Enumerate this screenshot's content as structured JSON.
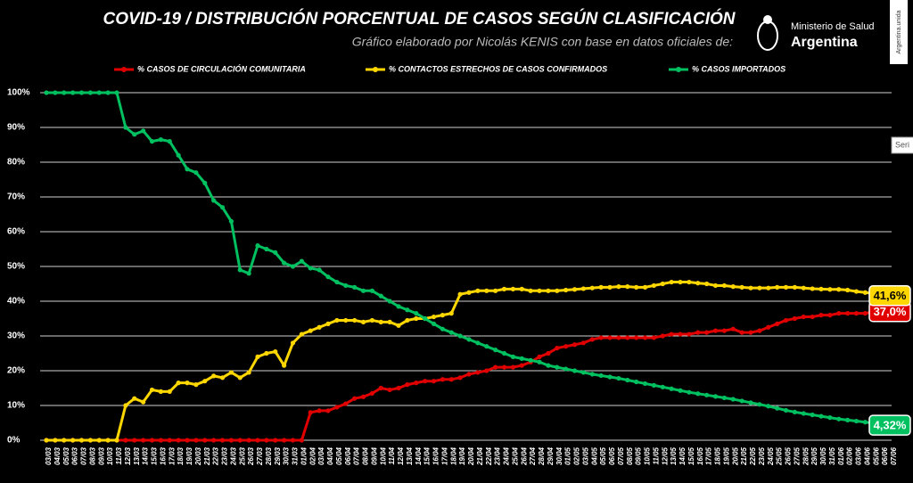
{
  "header": {
    "org_line1": "Ministerio de Salud",
    "org_line2": "Argentina",
    "side_tag": "Argentina.unida",
    "side_box": "Seri"
  },
  "chart_data": {
    "type": "line",
    "title": "COVID-19  /  DISTRIBUCIÓN PORCENTUAL DE CASOS SEGÚN CLASIFICACIÓN",
    "subtitle": "Gráfico elaborado por Nicolás KENIS con base en datos oficiales de:",
    "categories": [
      "03/03",
      "04/03",
      "05/03",
      "06/03",
      "07/03",
      "08/03",
      "09/03",
      "10/03",
      "11/03",
      "12/03",
      "13/03",
      "14/03",
      "15/03",
      "16/03",
      "17/03",
      "18/03",
      "19/03",
      "20/03",
      "21/03",
      "22/03",
      "23/03",
      "24/03",
      "25/03",
      "26/03",
      "27/03",
      "28/03",
      "29/03",
      "30/03",
      "31/03",
      "01/04",
      "02/04",
      "03/04",
      "04/04",
      "05/04",
      "06/04",
      "07/04",
      "08/04",
      "09/04",
      "10/04",
      "11/04",
      "12/04",
      "13/04",
      "14/04",
      "15/04",
      "16/04",
      "17/04",
      "18/04",
      "19/04",
      "20/04",
      "21/04",
      "22/04",
      "23/04",
      "24/04",
      "25/04",
      "26/04",
      "27/04",
      "28/04",
      "29/04",
      "30/04",
      "01/05",
      "02/05",
      "03/05",
      "04/05",
      "05/05",
      "06/05",
      "07/05",
      "08/05",
      "09/05",
      "10/05",
      "11/05",
      "12/05",
      "13/05",
      "14/05",
      "15/05",
      "16/05",
      "17/05",
      "18/05",
      "19/05",
      "20/05",
      "21/05",
      "22/05",
      "23/05",
      "24/05",
      "25/05",
      "26/05",
      "27/05",
      "28/05",
      "29/05",
      "30/05",
      "31/05",
      "01/06",
      "02/06",
      "03/06",
      "04/06",
      "05/06",
      "06/06",
      "07/06"
    ],
    "series": [
      {
        "name": "% CASOS DE CIRCULACIÓN COMUNITARIA",
        "color": "#e00000",
        "end_label": "37,0%",
        "values": [
          0,
          0,
          0,
          0,
          0,
          0,
          0,
          0,
          0,
          0,
          0,
          0,
          0,
          0,
          0,
          0,
          0,
          0,
          0,
          0,
          0,
          0,
          0,
          0,
          0,
          0,
          0,
          0,
          0,
          0,
          8,
          8.5,
          8.5,
          9.5,
          10.5,
          12,
          12.5,
          13.5,
          15,
          14.5,
          15,
          16,
          16.5,
          17,
          17,
          17.5,
          17.5,
          18,
          19,
          19.5,
          20,
          21,
          21,
          21,
          21.5,
          22.5,
          24,
          25,
          26.5,
          27,
          27.5,
          28,
          29,
          29.5,
          29.5,
          29.5,
          29.5,
          29.5,
          29.5,
          29.5,
          30,
          30.5,
          30.5,
          30.5,
          31,
          31,
          31.5,
          31.5,
          32,
          31,
          31,
          31.5,
          32.5,
          33.5,
          34.5,
          35,
          35.5,
          35.5,
          36,
          36,
          36.5,
          36.5,
          36.5,
          36.5,
          37,
          37,
          37
        ]
      },
      {
        "name": "% CONTACTOS ESTRECHOS DE CASOS CONFIRMADOS",
        "color": "#ffd700",
        "end_label": "41,6%",
        "values": [
          0,
          0,
          0,
          0,
          0,
          0,
          0,
          0,
          0,
          10,
          12,
          11,
          14.5,
          14,
          14,
          16.5,
          16.5,
          16,
          17,
          18.5,
          18,
          19.5,
          18,
          19.5,
          24,
          25,
          25.5,
          21.5,
          28,
          30.5,
          31.5,
          32.5,
          33.5,
          34.5,
          34.5,
          34.5,
          34,
          34.5,
          34,
          34,
          33,
          34.5,
          35,
          35,
          35.5,
          36,
          36.5,
          42,
          42.5,
          43,
          43,
          43,
          43.5,
          43.5,
          43.5,
          43,
          43,
          43,
          43,
          43.2,
          43.4,
          43.6,
          43.8,
          44,
          44,
          44.2,
          44.2,
          44,
          44,
          44.5,
          45,
          45.5,
          45.5,
          45.5,
          45.2,
          45,
          44.5,
          44.5,
          44.2,
          44,
          43.8,
          43.8,
          43.8,
          44,
          44,
          44,
          43.8,
          43.6,
          43.5,
          43.4,
          43.4,
          43.2,
          42.8,
          42.5,
          42.2,
          42,
          41.6
        ]
      },
      {
        "name": "% CASOS IMPORTADOS",
        "color": "#00c060",
        "end_label": "4,32%",
        "values": [
          100,
          100,
          100,
          100,
          100,
          100,
          100,
          100,
          100,
          90,
          88,
          89,
          86,
          86.5,
          86,
          82,
          78,
          77,
          74,
          69,
          67,
          63,
          49,
          48,
          56,
          55,
          54,
          51,
          50,
          51.5,
          49.5,
          49,
          47,
          45.5,
          44.5,
          44,
          43,
          43,
          41.5,
          40,
          38.5,
          37.5,
          36.5,
          35,
          33.5,
          32,
          31,
          30,
          29,
          28,
          27,
          26,
          25,
          24,
          23.5,
          23,
          22.5,
          21.5,
          21,
          20.5,
          20,
          19.5,
          19,
          18.6,
          18.2,
          17.8,
          17.3,
          16.8,
          16.3,
          15.8,
          15.3,
          14.8,
          14.3,
          13.8,
          13.4,
          13,
          12.6,
          12.2,
          11.8,
          11.3,
          10.8,
          10.3,
          9.8,
          9.2,
          8.6,
          8.1,
          7.7,
          7.3,
          6.9,
          6.5,
          6.1,
          5.8,
          5.5,
          5.2,
          4.9,
          4.6,
          4.32
        ]
      }
    ],
    "ylim": [
      0,
      100
    ],
    "yticks": [
      {
        "value": 0,
        "label": "0%"
      },
      {
        "value": 10,
        "label": "10%"
      },
      {
        "value": 20,
        "label": "20%"
      },
      {
        "value": 30,
        "label": "30%"
      },
      {
        "value": 40,
        "label": "40%"
      },
      {
        "value": 50,
        "label": "50%"
      },
      {
        "value": 60,
        "label": "60%"
      },
      {
        "value": 70,
        "label": "70%"
      },
      {
        "value": 80,
        "label": "80%"
      },
      {
        "value": 90,
        "label": "90%"
      },
      {
        "value": 100,
        "label": "100%"
      }
    ],
    "grid": true,
    "legend": "top"
  }
}
